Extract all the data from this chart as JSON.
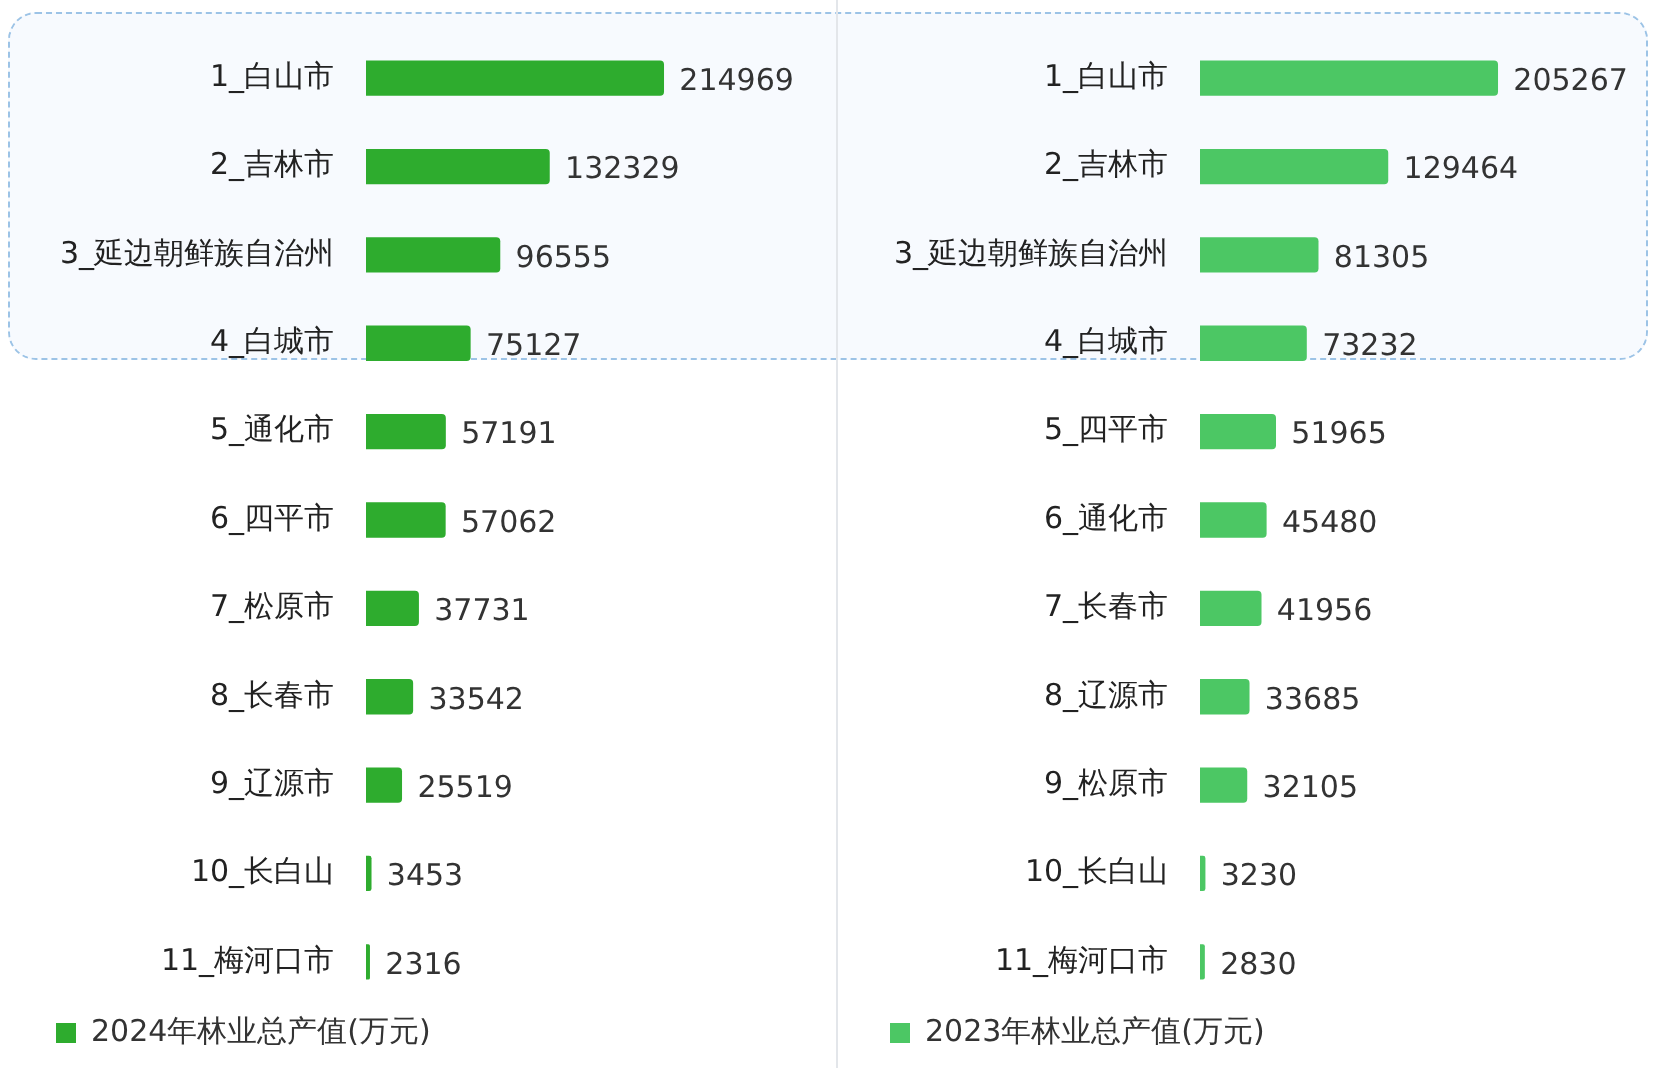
{
  "chart_data": [
    {
      "type": "bar",
      "orientation": "horizontal",
      "categories": [
        "1_白山市",
        "2_吉林市",
        "3_延边朝鲜族自治州",
        "4_白城市",
        "5_通化市",
        "6_四平市",
        "7_松原市",
        "8_长春市",
        "9_辽源市",
        "10_长白山",
        "11_梅河口市"
      ],
      "series": [
        {
          "name": "2024年林业总产值(万元)",
          "color": "#2eac2e",
          "values": [
            214969,
            132329,
            96555,
            75127,
            57191,
            57062,
            37731,
            33542,
            25519,
            3453,
            2316
          ]
        }
      ],
      "data_labels": true,
      "legend": "bottom",
      "tick_labels": "y"
    },
    {
      "type": "bar",
      "orientation": "horizontal",
      "categories": [
        "1_白山市",
        "2_吉林市",
        "3_延边朝鲜族自治州",
        "4_白城市",
        "5_四平市",
        "6_通化市",
        "7_长春市",
        "8_辽源市",
        "9_松原市",
        "10_长白山",
        "11_梅河口市"
      ],
      "series": [
        {
          "name": "2023年林业总产值(万元)",
          "color": "#4cc764",
          "values": [
            205267,
            129464,
            81305,
            73232,
            51965,
            45480,
            41956,
            33685,
            32105,
            3230,
            2830
          ]
        }
      ],
      "data_labels": true,
      "legend": "bottom",
      "tick_labels": "y"
    }
  ]
}
